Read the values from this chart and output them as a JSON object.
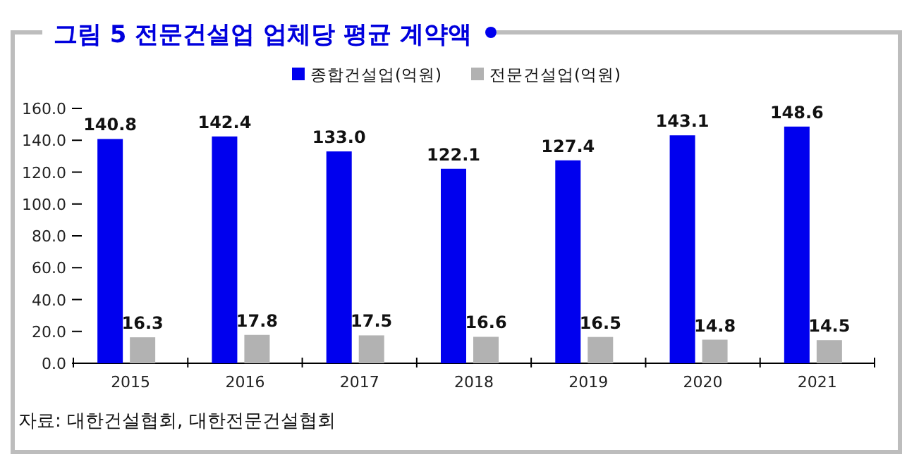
{
  "chart_data": {
    "type": "bar",
    "title": "그림 5 전문건설업 업체당 평균 계약액",
    "categories": [
      "2015",
      "2016",
      "2017",
      "2018",
      "2019",
      "2020",
      "2021"
    ],
    "series": [
      {
        "name": "종합건설업(억원)",
        "color": "#0000ee",
        "values": [
          140.8,
          142.4,
          133.0,
          122.1,
          127.4,
          143.1,
          148.6
        ],
        "value_labels": [
          "140.8",
          "142.4",
          "133.0",
          "122.1",
          "127.4",
          "143.1",
          "148.6"
        ]
      },
      {
        "name": "전문건설업(억원)",
        "color": "#b2b2b2",
        "values": [
          16.3,
          17.8,
          17.5,
          16.6,
          16.5,
          14.8,
          14.5
        ],
        "value_labels": [
          "16.3",
          "17.8",
          "17.5",
          "16.6",
          "16.5",
          "14.8",
          "14.5"
        ]
      }
    ],
    "ylim": [
      0,
      160
    ],
    "yticks": [
      {
        "value": 0,
        "label": "0.0"
      },
      {
        "value": 20,
        "label": "20.0"
      },
      {
        "value": 40,
        "label": "40.0"
      },
      {
        "value": 60,
        "label": "60.0"
      },
      {
        "value": 80,
        "label": "80.0"
      },
      {
        "value": 100,
        "label": "100.0"
      },
      {
        "value": 120,
        "label": "120.0"
      },
      {
        "value": 140,
        "label": "140.0"
      },
      {
        "value": 160,
        "label": "160.0"
      }
    ],
    "legend": "top",
    "grid": false,
    "annotations": [
      "자료: 대한건설협회, 대한전문건설협회"
    ]
  }
}
